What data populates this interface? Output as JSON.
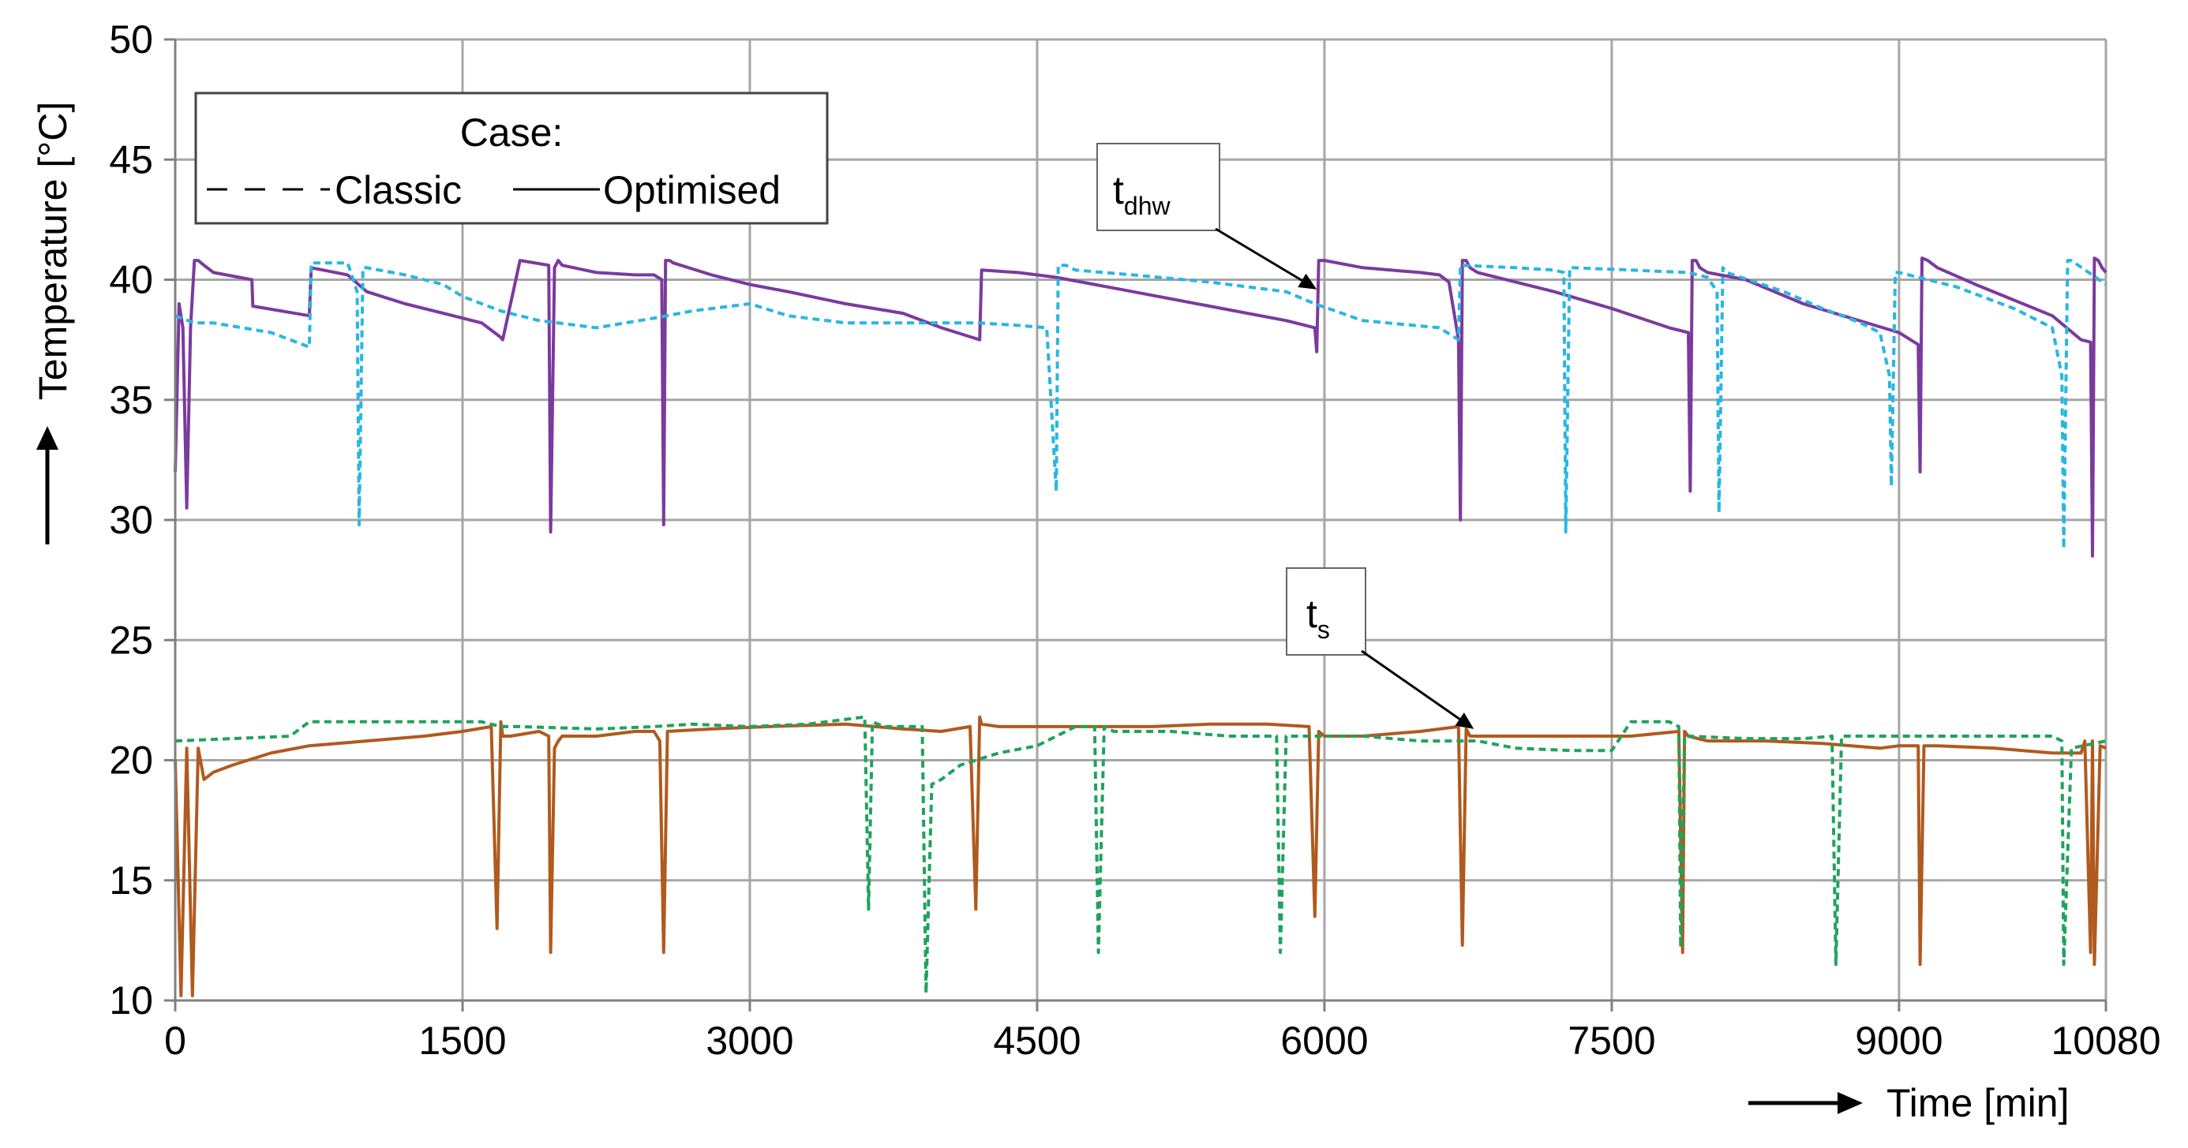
{
  "chart_data": {
    "type": "line",
    "title": "",
    "xlabel": "Time [min]",
    "ylabel": "Temperature [°C]",
    "xlim": [
      0,
      10080
    ],
    "ylim": [
      10,
      50
    ],
    "xticks": [
      0,
      1500,
      3000,
      4500,
      6000,
      7500,
      9000,
      10080
    ],
    "yticks": [
      10,
      15,
      20,
      25,
      30,
      35,
      40,
      45,
      50
    ],
    "grid": true,
    "legend": {
      "title": "Case:",
      "position": "top-left",
      "entries": [
        {
          "label": "Classic",
          "style": "dashed"
        },
        {
          "label": "Optimised",
          "style": "solid"
        }
      ]
    },
    "annotations": [
      {
        "text": "t",
        "subscript": "dhw",
        "target_x": 5960,
        "target_y": 39.6
      },
      {
        "text": "t",
        "subscript": "s",
        "target_x": 6780,
        "target_y": 21.3
      }
    ],
    "colors": {
      "tdhw_classic": "#29b6e3",
      "tdhw_optimised": "#7b3a9e",
      "ts_classic": "#1fa35c",
      "ts_optimised": "#b05a1e"
    },
    "series": [
      {
        "key": "tdhw_optimised",
        "style": "solid",
        "x": [
          0,
          20,
          40,
          60,
          80,
          100,
          120,
          150,
          200,
          400,
          405,
          700,
          710,
          900,
          1000,
          1200,
          1400,
          1600,
          1700,
          1710,
          1800,
          1950,
          1960,
          1980,
          2000,
          2020,
          2200,
          2400,
          2500,
          2540,
          2550,
          2560,
          2580,
          2600,
          2800,
          3000,
          3200,
          3500,
          3800,
          4000,
          4200,
          4210,
          4400,
          4600,
          5000,
          5400,
          5800,
          5950,
          5960,
          5970,
          6000,
          6200,
          6500,
          6600,
          6650,
          6700,
          6710,
          6720,
          6740,
          6760,
          6800,
          7200,
          7500,
          7800,
          7900,
          7910,
          7920,
          7940,
          7960,
          8000,
          8200,
          8500,
          9000,
          9100,
          9110,
          9120,
          9150,
          9200,
          9400,
          9800,
          9950,
          10000,
          10010,
          10020,
          10040,
          10060,
          10080
        ],
        "y": [
          32,
          39,
          38,
          30.5,
          38,
          40.8,
          40.8,
          40.6,
          40.3,
          40,
          38.9,
          38.5,
          40.5,
          40.2,
          39.5,
          39,
          38.6,
          38.2,
          37.6,
          37.5,
          40.8,
          40.6,
          29.5,
          40.5,
          40.8,
          40.6,
          40.3,
          40.2,
          40.2,
          40,
          29.8,
          40.8,
          40.8,
          40.7,
          40.2,
          39.8,
          39.5,
          39,
          38.6,
          38,
          37.5,
          40.4,
          40.3,
          40.1,
          39.5,
          38.9,
          38.3,
          38,
          37,
          40.8,
          40.8,
          40.5,
          40.3,
          40.2,
          39.9,
          37.5,
          30,
          40.8,
          40.8,
          40.5,
          40.3,
          39.5,
          38.8,
          38,
          37.8,
          31.2,
          40.8,
          40.8,
          40.5,
          40.3,
          40,
          39,
          37.8,
          37.3,
          32,
          40.9,
          40.8,
          40.5,
          39.8,
          38.5,
          37.5,
          37.4,
          28.5,
          40.9,
          40.8,
          40.5,
          40.3
        ]
      },
      {
        "key": "tdhw_classic",
        "style": "dashed",
        "x": [
          0,
          100,
          200,
          500,
          700,
          710,
          900,
          950,
          960,
          980,
          1000,
          1200,
          1400,
          1500,
          1700,
          1900,
          2200,
          2500,
          2700,
          3000,
          3200,
          3500,
          3600,
          3800,
          4200,
          4400,
          4550,
          4600,
          4610,
          4650,
          4700,
          5000,
          5400,
          5800,
          5950,
          6200,
          6600,
          6700,
          6710,
          7000,
          7200,
          7250,
          7260,
          7280,
          7300,
          7600,
          7900,
          8000,
          8050,
          8060,
          8080,
          8100,
          8400,
          8600,
          8800,
          8900,
          8950,
          8960,
          8980,
          9000,
          9300,
          9600,
          9800,
          9850,
          9860,
          9880,
          9900,
          10080
        ],
        "y": [
          38.5,
          38.2,
          38.2,
          37.8,
          37.2,
          40.7,
          40.7,
          39.5,
          29.8,
          40.5,
          40.5,
          40.2,
          39.8,
          39.3,
          38.7,
          38.3,
          38,
          38.4,
          38.7,
          39,
          38.5,
          38.2,
          38.2,
          38.2,
          38.2,
          38.1,
          38,
          31.2,
          40.6,
          40.6,
          40.4,
          40.2,
          39.9,
          39.5,
          39,
          38.3,
          38,
          37.5,
          40.6,
          40.5,
          40.4,
          40.3,
          29.5,
          40.5,
          40.5,
          40.4,
          40.3,
          40.1,
          39.5,
          30.3,
          40.5,
          40.3,
          39.5,
          38.8,
          38.2,
          37.8,
          36,
          31.4,
          40.3,
          40.3,
          39.7,
          38.8,
          38,
          36,
          28.8,
          40.8,
          40.8,
          39.8
        ]
      },
      {
        "key": "ts_optimised",
        "style": "solid",
        "x": [
          0,
          30,
          60,
          90,
          120,
          150,
          200,
          300,
          500,
          700,
          1000,
          1300,
          1500,
          1650,
          1680,
          1700,
          1710,
          1750,
          1900,
          1950,
          1960,
          1980,
          2000,
          2020,
          2200,
          2400,
          2500,
          2530,
          2550,
          2570,
          2800,
          3100,
          3500,
          3800,
          4000,
          4150,
          4180,
          4200,
          4210,
          4300,
          4500,
          4800,
          5100,
          5400,
          5700,
          5920,
          5950,
          5970,
          6000,
          6200,
          6500,
          6700,
          6720,
          6740,
          6760,
          7000,
          7300,
          7600,
          7850,
          7870,
          7880,
          7900,
          8000,
          8300,
          8600,
          8900,
          9000,
          9100,
          9110,
          9130,
          9200,
          9500,
          9800,
          9950,
          9970,
          10000,
          10010,
          10020,
          10050,
          10080
        ],
        "y": [
          20,
          10.2,
          20.5,
          10.2,
          20.5,
          19.2,
          19.5,
          19.8,
          20.3,
          20.6,
          20.8,
          21,
          21.2,
          21.4,
          13,
          21.6,
          21,
          21,
          21.2,
          21,
          12,
          20.5,
          20.8,
          21,
          21,
          21.2,
          21.2,
          20.8,
          12,
          21.2,
          21.3,
          21.4,
          21.5,
          21.3,
          21.2,
          21.4,
          13.8,
          21.8,
          21.5,
          21.4,
          21.4,
          21.4,
          21.4,
          21.5,
          21.5,
          21.4,
          13.5,
          21.2,
          21,
          21,
          21.2,
          21.4,
          12.3,
          21.3,
          21,
          21,
          21,
          21,
          21.2,
          12,
          21.2,
          21,
          20.8,
          20.8,
          20.7,
          20.5,
          20.6,
          20.6,
          11.5,
          20.6,
          20.6,
          20.5,
          20.3,
          20.3,
          20.8,
          12,
          20.8,
          11.5,
          20.6,
          20.5
        ]
      },
      {
        "key": "ts_classic",
        "style": "dashed",
        "x": [
          0,
          300,
          600,
          700,
          1000,
          1300,
          1500,
          1600,
          1700,
          1800,
          2200,
          2500,
          2700,
          3000,
          3300,
          3600,
          3620,
          3640,
          3700,
          3900,
          3920,
          3950,
          4000,
          4100,
          4300,
          4500,
          4700,
          4800,
          4820,
          4850,
          4900,
          5200,
          5500,
          5750,
          5770,
          5800,
          5900,
          6200,
          6500,
          6800,
          7000,
          7300,
          7500,
          7600,
          7800,
          7850,
          7860,
          7880,
          7900,
          8200,
          8500,
          8650,
          8670,
          8700,
          8900,
          9200,
          9500,
          9800,
          9850,
          9860,
          9900,
          10080
        ],
        "y": [
          20.8,
          20.9,
          21,
          21.6,
          21.6,
          21.6,
          21.6,
          21.6,
          21.4,
          21.4,
          21.3,
          21.4,
          21.5,
          21.4,
          21.5,
          21.8,
          13.8,
          21.6,
          21.4,
          21.4,
          10.3,
          19,
          19.2,
          19.8,
          20.3,
          20.6,
          21.4,
          21.4,
          12,
          21.4,
          21.2,
          21.2,
          21,
          21,
          12,
          21,
          21,
          21,
          20.8,
          20.8,
          20.5,
          20.4,
          20.4,
          21.6,
          21.6,
          21.4,
          12.2,
          21,
          21,
          20.9,
          20.9,
          21,
          11.5,
          21,
          21,
          21,
          21,
          21,
          20.8,
          11.5,
          20.5,
          20.8
        ]
      }
    ]
  }
}
